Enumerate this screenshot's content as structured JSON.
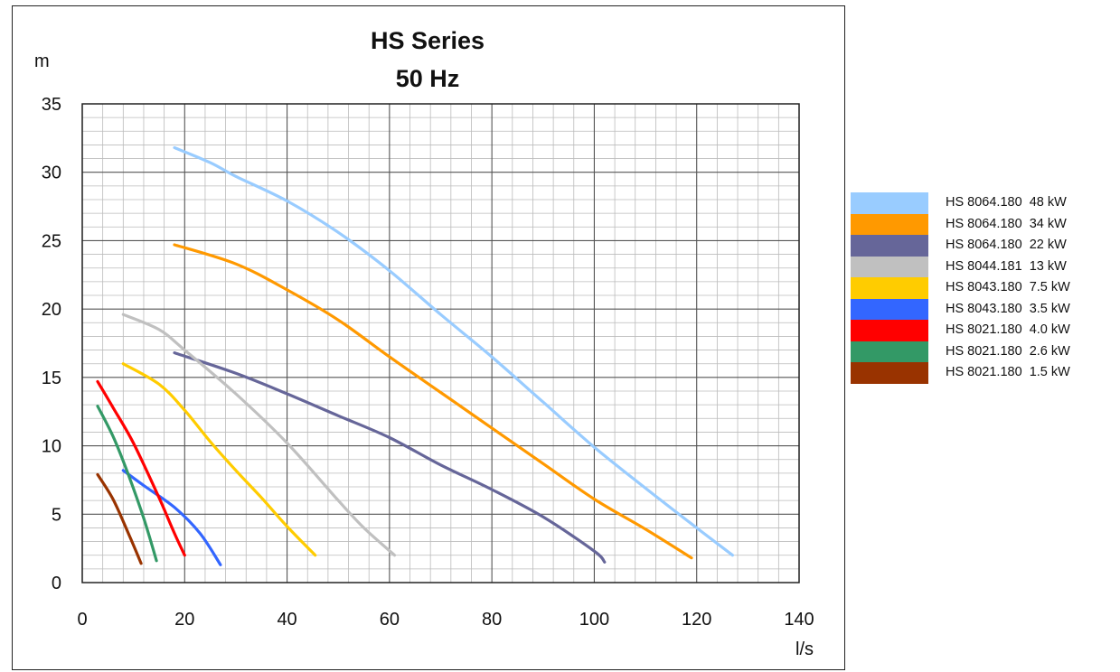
{
  "chart_data": {
    "type": "line",
    "title": "HS Series",
    "subtitle": "50 Hz",
    "xlabel": "l/s",
    "ylabel": "m",
    "xlim": [
      0,
      140
    ],
    "ylim": [
      0,
      35
    ],
    "xticks": [
      0,
      20,
      40,
      60,
      80,
      100,
      120,
      140
    ],
    "yticks": [
      0,
      5,
      10,
      15,
      20,
      25,
      30,
      35
    ],
    "grid": true,
    "legend_position": "right",
    "series": [
      {
        "name": "HS 8064.180  48 kW",
        "color": "#99ccff",
        "points": [
          [
            18,
            31.8
          ],
          [
            25,
            30.7
          ],
          [
            30,
            29.7
          ],
          [
            40,
            27.9
          ],
          [
            50,
            25.6
          ],
          [
            60,
            22.8
          ],
          [
            70,
            19.6
          ],
          [
            80,
            16.5
          ],
          [
            90,
            13.2
          ],
          [
            100,
            9.9
          ],
          [
            110,
            6.9
          ],
          [
            120,
            4.0
          ],
          [
            127,
            2.0
          ]
        ]
      },
      {
        "name": "HS 8064.180  34 kW",
        "color": "#ff9900",
        "points": [
          [
            18,
            24.7
          ],
          [
            30,
            23.3
          ],
          [
            40,
            21.4
          ],
          [
            50,
            19.2
          ],
          [
            60,
            16.5
          ],
          [
            70,
            13.9
          ],
          [
            80,
            11.3
          ],
          [
            90,
            8.7
          ],
          [
            100,
            6.1
          ],
          [
            110,
            3.9
          ],
          [
            119,
            1.8
          ]
        ]
      },
      {
        "name": "HS 8064.180  22 kW",
        "color": "#666699",
        "points": [
          [
            18,
            16.8
          ],
          [
            30,
            15.3
          ],
          [
            40,
            13.8
          ],
          [
            50,
            12.2
          ],
          [
            60,
            10.6
          ],
          [
            70,
            8.6
          ],
          [
            80,
            6.8
          ],
          [
            90,
            4.8
          ],
          [
            100,
            2.3
          ],
          [
            102,
            1.5
          ]
        ]
      },
      {
        "name": "HS 8044.181  13 kW",
        "color": "#c0c0c0",
        "points": [
          [
            8,
            19.6
          ],
          [
            15,
            18.5
          ],
          [
            20,
            17.0
          ],
          [
            30,
            13.8
          ],
          [
            40,
            10.2
          ],
          [
            50,
            6.0
          ],
          [
            55,
            4.0
          ],
          [
            61,
            2.0
          ]
        ]
      },
      {
        "name": "HS 8043.180  7.5 kW",
        "color": "#ffcc00",
        "points": [
          [
            8,
            16.0
          ],
          [
            15,
            14.5
          ],
          [
            20,
            12.6
          ],
          [
            25,
            10.3
          ],
          [
            30,
            8.2
          ],
          [
            35,
            6.2
          ],
          [
            40,
            4.1
          ],
          [
            45.5,
            2.0
          ]
        ]
      },
      {
        "name": "HS 8043.180  3.5 kW",
        "color": "#3366ff",
        "points": [
          [
            8,
            8.2
          ],
          [
            12,
            7.1
          ],
          [
            18,
            5.5
          ],
          [
            23,
            3.6
          ],
          [
            27,
            1.3
          ]
        ]
      },
      {
        "name": "HS 8021.180  4.0 kW",
        "color": "#ff0000",
        "points": [
          [
            3,
            14.7
          ],
          [
            6,
            12.8
          ],
          [
            10,
            10.2
          ],
          [
            15,
            6.2
          ],
          [
            18,
            3.6
          ],
          [
            20,
            2.0
          ]
        ]
      },
      {
        "name": "HS 8021.180  2.6 kW",
        "color": "#339966",
        "points": [
          [
            3,
            12.9
          ],
          [
            6,
            10.7
          ],
          [
            9,
            7.9
          ],
          [
            12,
            4.7
          ],
          [
            14.5,
            1.6
          ]
        ]
      },
      {
        "name": "HS 8021.180  1.5 kW",
        "color": "#993300",
        "points": [
          [
            3,
            7.9
          ],
          [
            6,
            6.1
          ],
          [
            9,
            3.6
          ],
          [
            11.5,
            1.4
          ]
        ]
      }
    ]
  }
}
